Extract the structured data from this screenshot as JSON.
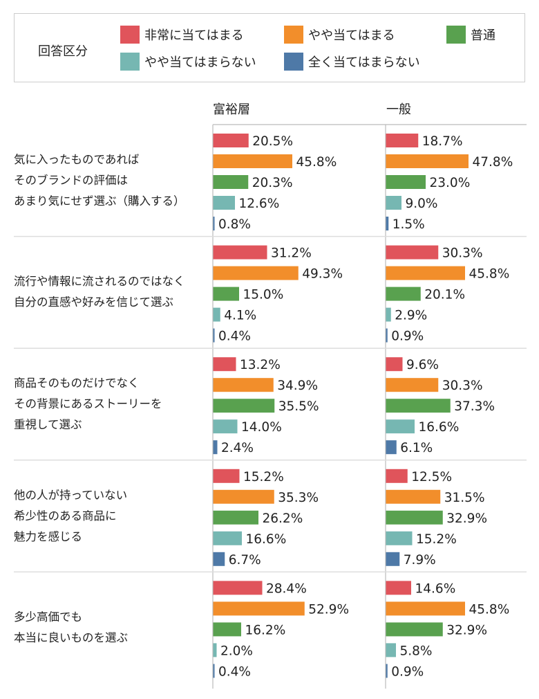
{
  "legend": {
    "title": "回答区分",
    "items": [
      {
        "label": "非常に当てはまる",
        "color": "#e0545b"
      },
      {
        "label": "やや当てはまる",
        "color": "#f28e2b"
      },
      {
        "label": "普通",
        "color": "#59a14f"
      },
      {
        "label": "やや当てはまらない",
        "color": "#76b7b2"
      },
      {
        "label": "全く当てはまらない",
        "color": "#4e79a7"
      }
    ]
  },
  "chart_data": {
    "type": "bar",
    "orientation": "horizontal",
    "panels": [
      "富裕層",
      "一般"
    ],
    "categories": [
      "気に入ったものであれば\nそのブランドの評価は\nあまり気にせず選ぶ（購入する）",
      "流行や情報に流されるのではなく\n自分の直感や好みを信じて選ぶ",
      "商品そのものだけでなく\nその背景にあるストーリーを\n重視して選ぶ",
      "他の人が持っていない\n希少性のある商品に\n魅力を感じる",
      "多少高価でも\n本当に良いものを選ぶ"
    ],
    "series_names": [
      "非常に当てはまる",
      "やや当てはまる",
      "普通",
      "やや当てはまらない",
      "全く当てはまらない"
    ],
    "values": {
      "富裕層": [
        [
          20.5,
          45.8,
          20.3,
          12.6,
          0.8
        ],
        [
          31.2,
          49.3,
          15.0,
          4.1,
          0.4
        ],
        [
          13.2,
          34.9,
          35.5,
          14.0,
          2.4
        ],
        [
          15.2,
          35.3,
          26.2,
          16.6,
          6.7
        ],
        [
          28.4,
          52.9,
          16.2,
          2.0,
          0.4
        ]
      ],
      "一般": [
        [
          18.7,
          47.8,
          23.0,
          9.0,
          1.5
        ],
        [
          30.3,
          45.8,
          20.1,
          2.9,
          0.9
        ],
        [
          9.6,
          30.3,
          37.3,
          16.6,
          6.1
        ],
        [
          12.5,
          31.5,
          32.9,
          15.2,
          7.9
        ],
        [
          14.6,
          45.8,
          32.9,
          5.8,
          0.9
        ]
      ]
    },
    "unit": "%",
    "xlim": [
      0,
      100
    ]
  }
}
